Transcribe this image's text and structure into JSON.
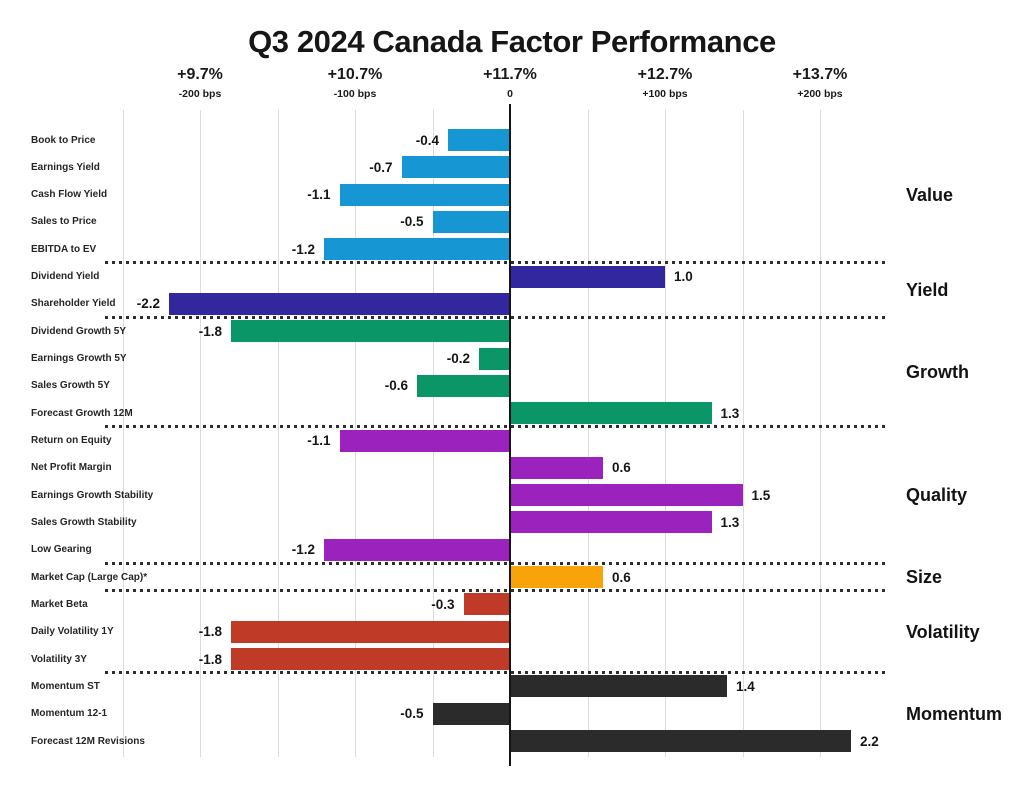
{
  "title": "Q3 2024 Canada Factor Performance",
  "chart_data": {
    "type": "bar",
    "orientation": "horizontal",
    "title": "Q3 2024 Canada Factor Performance",
    "value_unit": "percentage points (100 bps = 1.0)",
    "grid": true,
    "legend": "none",
    "x_axis": {
      "xlim": [
        -2.6,
        2.45
      ],
      "gridline_step": 0.5,
      "ticks": [
        {
          "pct": "+9.7%",
          "bps": "-200 bps",
          "value": -2.0
        },
        {
          "pct": "+10.7%",
          "bps": "-100 bps",
          "value": -1.0
        },
        {
          "pct": "+11.7%",
          "bps": "0",
          "value": 0.0
        },
        {
          "pct": "+12.7%",
          "bps": "+100 bps",
          "value": 1.0
        },
        {
          "pct": "+13.7%",
          "bps": "+200 bps",
          "value": 2.0
        }
      ]
    },
    "groups": [
      {
        "name": "Value",
        "color": "#1697D4",
        "bars": [
          {
            "label": "Book to Price",
            "value": -0.4,
            "display": "-0.4"
          },
          {
            "label": "Earnings Yield",
            "value": -0.7,
            "display": "-0.7"
          },
          {
            "label": "Cash Flow Yield",
            "value": -1.1,
            "display": "-1.1"
          },
          {
            "label": "Sales to Price",
            "value": -0.5,
            "display": "-0.5"
          },
          {
            "label": "EBITDA to EV",
            "value": -1.2,
            "display": "-1.2"
          }
        ]
      },
      {
        "name": "Yield",
        "color": "#33279F",
        "bars": [
          {
            "label": "Dividend Yield",
            "value": 1.0,
            "display": "1.0"
          },
          {
            "label": "Shareholder Yield",
            "value": -2.2,
            "display": "-2.2"
          }
        ]
      },
      {
        "name": "Growth",
        "color": "#0A9666",
        "bars": [
          {
            "label": "Dividend Growth 5Y",
            "value": -1.8,
            "display": "-1.8"
          },
          {
            "label": "Earnings Growth 5Y",
            "value": -0.2,
            "display": "-0.2"
          },
          {
            "label": "Sales Growth 5Y",
            "value": -0.6,
            "display": "-0.6"
          },
          {
            "label": "Forecast Growth 12M",
            "value": 1.3,
            "display": "1.3"
          }
        ]
      },
      {
        "name": "Quality",
        "color": "#9C22BE",
        "bars": [
          {
            "label": "Return on Equity",
            "value": -1.1,
            "display": "-1.1"
          },
          {
            "label": "Net Profit Margin",
            "value": 0.6,
            "display": "0.6"
          },
          {
            "label": "Earnings Growth Stability",
            "value": 1.5,
            "display": "1.5"
          },
          {
            "label": "Sales Growth Stability",
            "value": 1.3,
            "display": "1.3"
          },
          {
            "label": "Low Gearing",
            "value": -1.2,
            "display": "-1.2"
          }
        ]
      },
      {
        "name": "Size",
        "color": "#F9A30B",
        "bars": [
          {
            "label": "Market Cap (Large Cap)*",
            "value": 0.6,
            "display": "0.6"
          }
        ]
      },
      {
        "name": "Volatility",
        "color": "#C03A28",
        "bars": [
          {
            "label": "Market Beta",
            "value": -0.3,
            "display": "-0.3"
          },
          {
            "label": "Daily Volatility 1Y",
            "value": -1.8,
            "display": "-1.8"
          },
          {
            "label": "Volatility 3Y",
            "value": -1.8,
            "display": "-1.8"
          }
        ]
      },
      {
        "name": "Momentum",
        "color": "#2B2B2B",
        "bars": [
          {
            "label": "Momentum ST",
            "value": 1.4,
            "display": "1.4"
          },
          {
            "label": "Momentum 12-1",
            "value": -0.5,
            "display": "-0.5"
          },
          {
            "label": "Forecast 12M Revisions",
            "value": 2.2,
            "display": "2.2"
          }
        ]
      }
    ]
  },
  "colors": {
    "background": "#FFFFFF",
    "axis_line": "#151515",
    "gridline": "#DCDCDC",
    "separator": "#2D2D2D",
    "text": "#1A1A1A"
  }
}
